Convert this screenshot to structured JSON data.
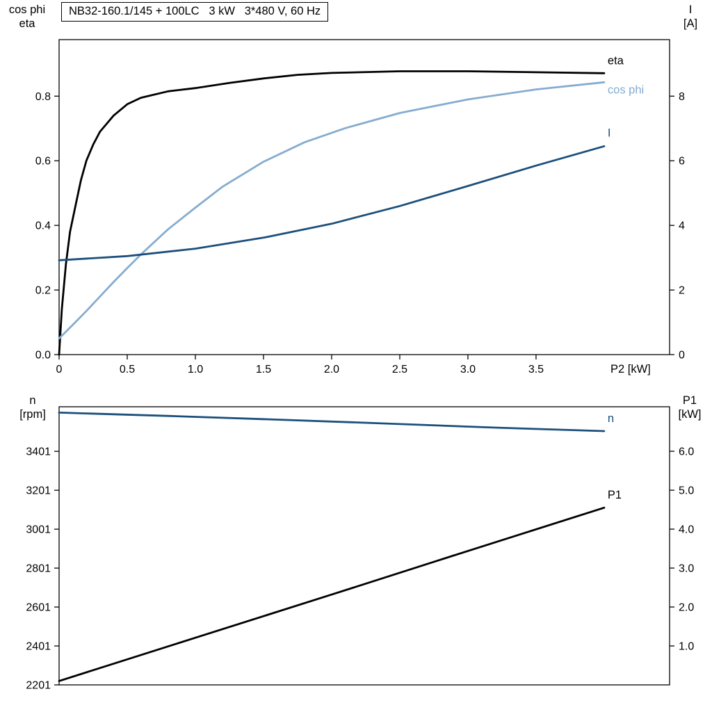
{
  "header": {
    "title": "NB32-160.1/145 + 100LC   3 kW   3*480 V, 60 Hz"
  },
  "colors": {
    "black": "#000000",
    "dark_blue": "#1c4f7c",
    "light_blue": "#85accf",
    "background": "#ffffff"
  },
  "chart_data": [
    {
      "type": "line",
      "title": "NB32-160.1/145 + 100LC   3 kW   3*480 V, 60 Hz",
      "xlabel": "P2 [kW]",
      "xlim": [
        0,
        4.48
      ],
      "x_ticks": [
        "0",
        "0.5",
        "1.0",
        "1.5",
        "2.0",
        "2.5",
        "3.0",
        "3.5"
      ],
      "grid": false,
      "legend_position": "right-of-curve-ends",
      "left_axis": {
        "title_lines": [
          "cos phi",
          "eta"
        ],
        "ticks": [
          "0.0",
          "0.2",
          "0.4",
          "0.6",
          "0.8"
        ],
        "lim": [
          0,
          0.975
        ]
      },
      "right_axis": {
        "title_lines": [
          "I",
          "[A]"
        ],
        "ticks": [
          "0",
          "2",
          "4",
          "6",
          "8"
        ],
        "lim": [
          0,
          9.75
        ]
      },
      "series": [
        {
          "id": "eta",
          "name": "eta",
          "axis": "left",
          "color": "#000000",
          "label_dy": -13,
          "x": [
            0,
            0.02,
            0.05,
            0.08,
            0.12,
            0.16,
            0.2,
            0.25,
            0.3,
            0.4,
            0.5,
            0.6,
            0.8,
            1.0,
            1.25,
            1.5,
            1.75,
            2.0,
            2.5,
            3.0,
            3.5,
            4.0
          ],
          "y": [
            0,
            0.14,
            0.28,
            0.38,
            0.46,
            0.54,
            0.6,
            0.65,
            0.69,
            0.74,
            0.775,
            0.795,
            0.815,
            0.825,
            0.841,
            0.855,
            0.866,
            0.872,
            0.877,
            0.877,
            0.874,
            0.871
          ]
        },
        {
          "id": "cos-phi",
          "name": "cos phi",
          "axis": "left",
          "color": "#85accf",
          "label_dy": 16,
          "x": [
            0,
            0.1,
            0.2,
            0.3,
            0.4,
            0.5,
            0.6,
            0.8,
            1.0,
            1.2,
            1.5,
            1.8,
            2.1,
            2.5,
            3.0,
            3.5,
            4.0
          ],
          "y": [
            0.05,
            0.092,
            0.135,
            0.18,
            0.225,
            0.268,
            0.31,
            0.388,
            0.455,
            0.52,
            0.597,
            0.657,
            0.701,
            0.748,
            0.79,
            0.821,
            0.843
          ]
        },
        {
          "id": "current",
          "name": "I",
          "axis": "right",
          "color": "#1c4f7c",
          "label_dy": -14,
          "x": [
            0,
            0.5,
            1.0,
            1.5,
            2.0,
            2.5,
            3.0,
            3.5,
            4.0
          ],
          "y": [
            2.92,
            3.05,
            3.28,
            3.62,
            4.05,
            4.6,
            5.22,
            5.85,
            6.45
          ]
        }
      ]
    },
    {
      "type": "line",
      "title": "",
      "xlabel": "",
      "xlim": [
        0,
        4.48
      ],
      "x_ticks": [],
      "grid": false,
      "left_axis": {
        "title_lines": [
          "n",
          "[rpm]"
        ],
        "ticks": [
          "2201",
          "2401",
          "2601",
          "2801",
          "3001",
          "3201",
          "3401"
        ],
        "lim": [
          2201,
          3630
        ]
      },
      "right_axis": {
        "title_lines": [
          "P1",
          "[kW]"
        ],
        "ticks": [
          "1.0",
          "2.0",
          "3.0",
          "4.0",
          "5.0",
          "6.0"
        ],
        "lim": [
          0,
          7.143
        ]
      },
      "series": [
        {
          "id": "speed",
          "name": "n",
          "axis": "left",
          "color": "#1c4f7c",
          "label_dy": -13,
          "x": [
            0,
            0.8,
            1.6,
            2.4,
            3.2,
            4.0
          ],
          "y": [
            3600,
            3583,
            3564,
            3544,
            3523,
            3505
          ]
        },
        {
          "id": "p1",
          "name": "P1",
          "axis": "right",
          "color": "#000000",
          "label_dy": -13,
          "x": [
            0,
            1.0,
            2.0,
            3.0,
            4.0
          ],
          "y": [
            0.1,
            1.21,
            2.32,
            3.44,
            4.55
          ]
        }
      ]
    }
  ]
}
